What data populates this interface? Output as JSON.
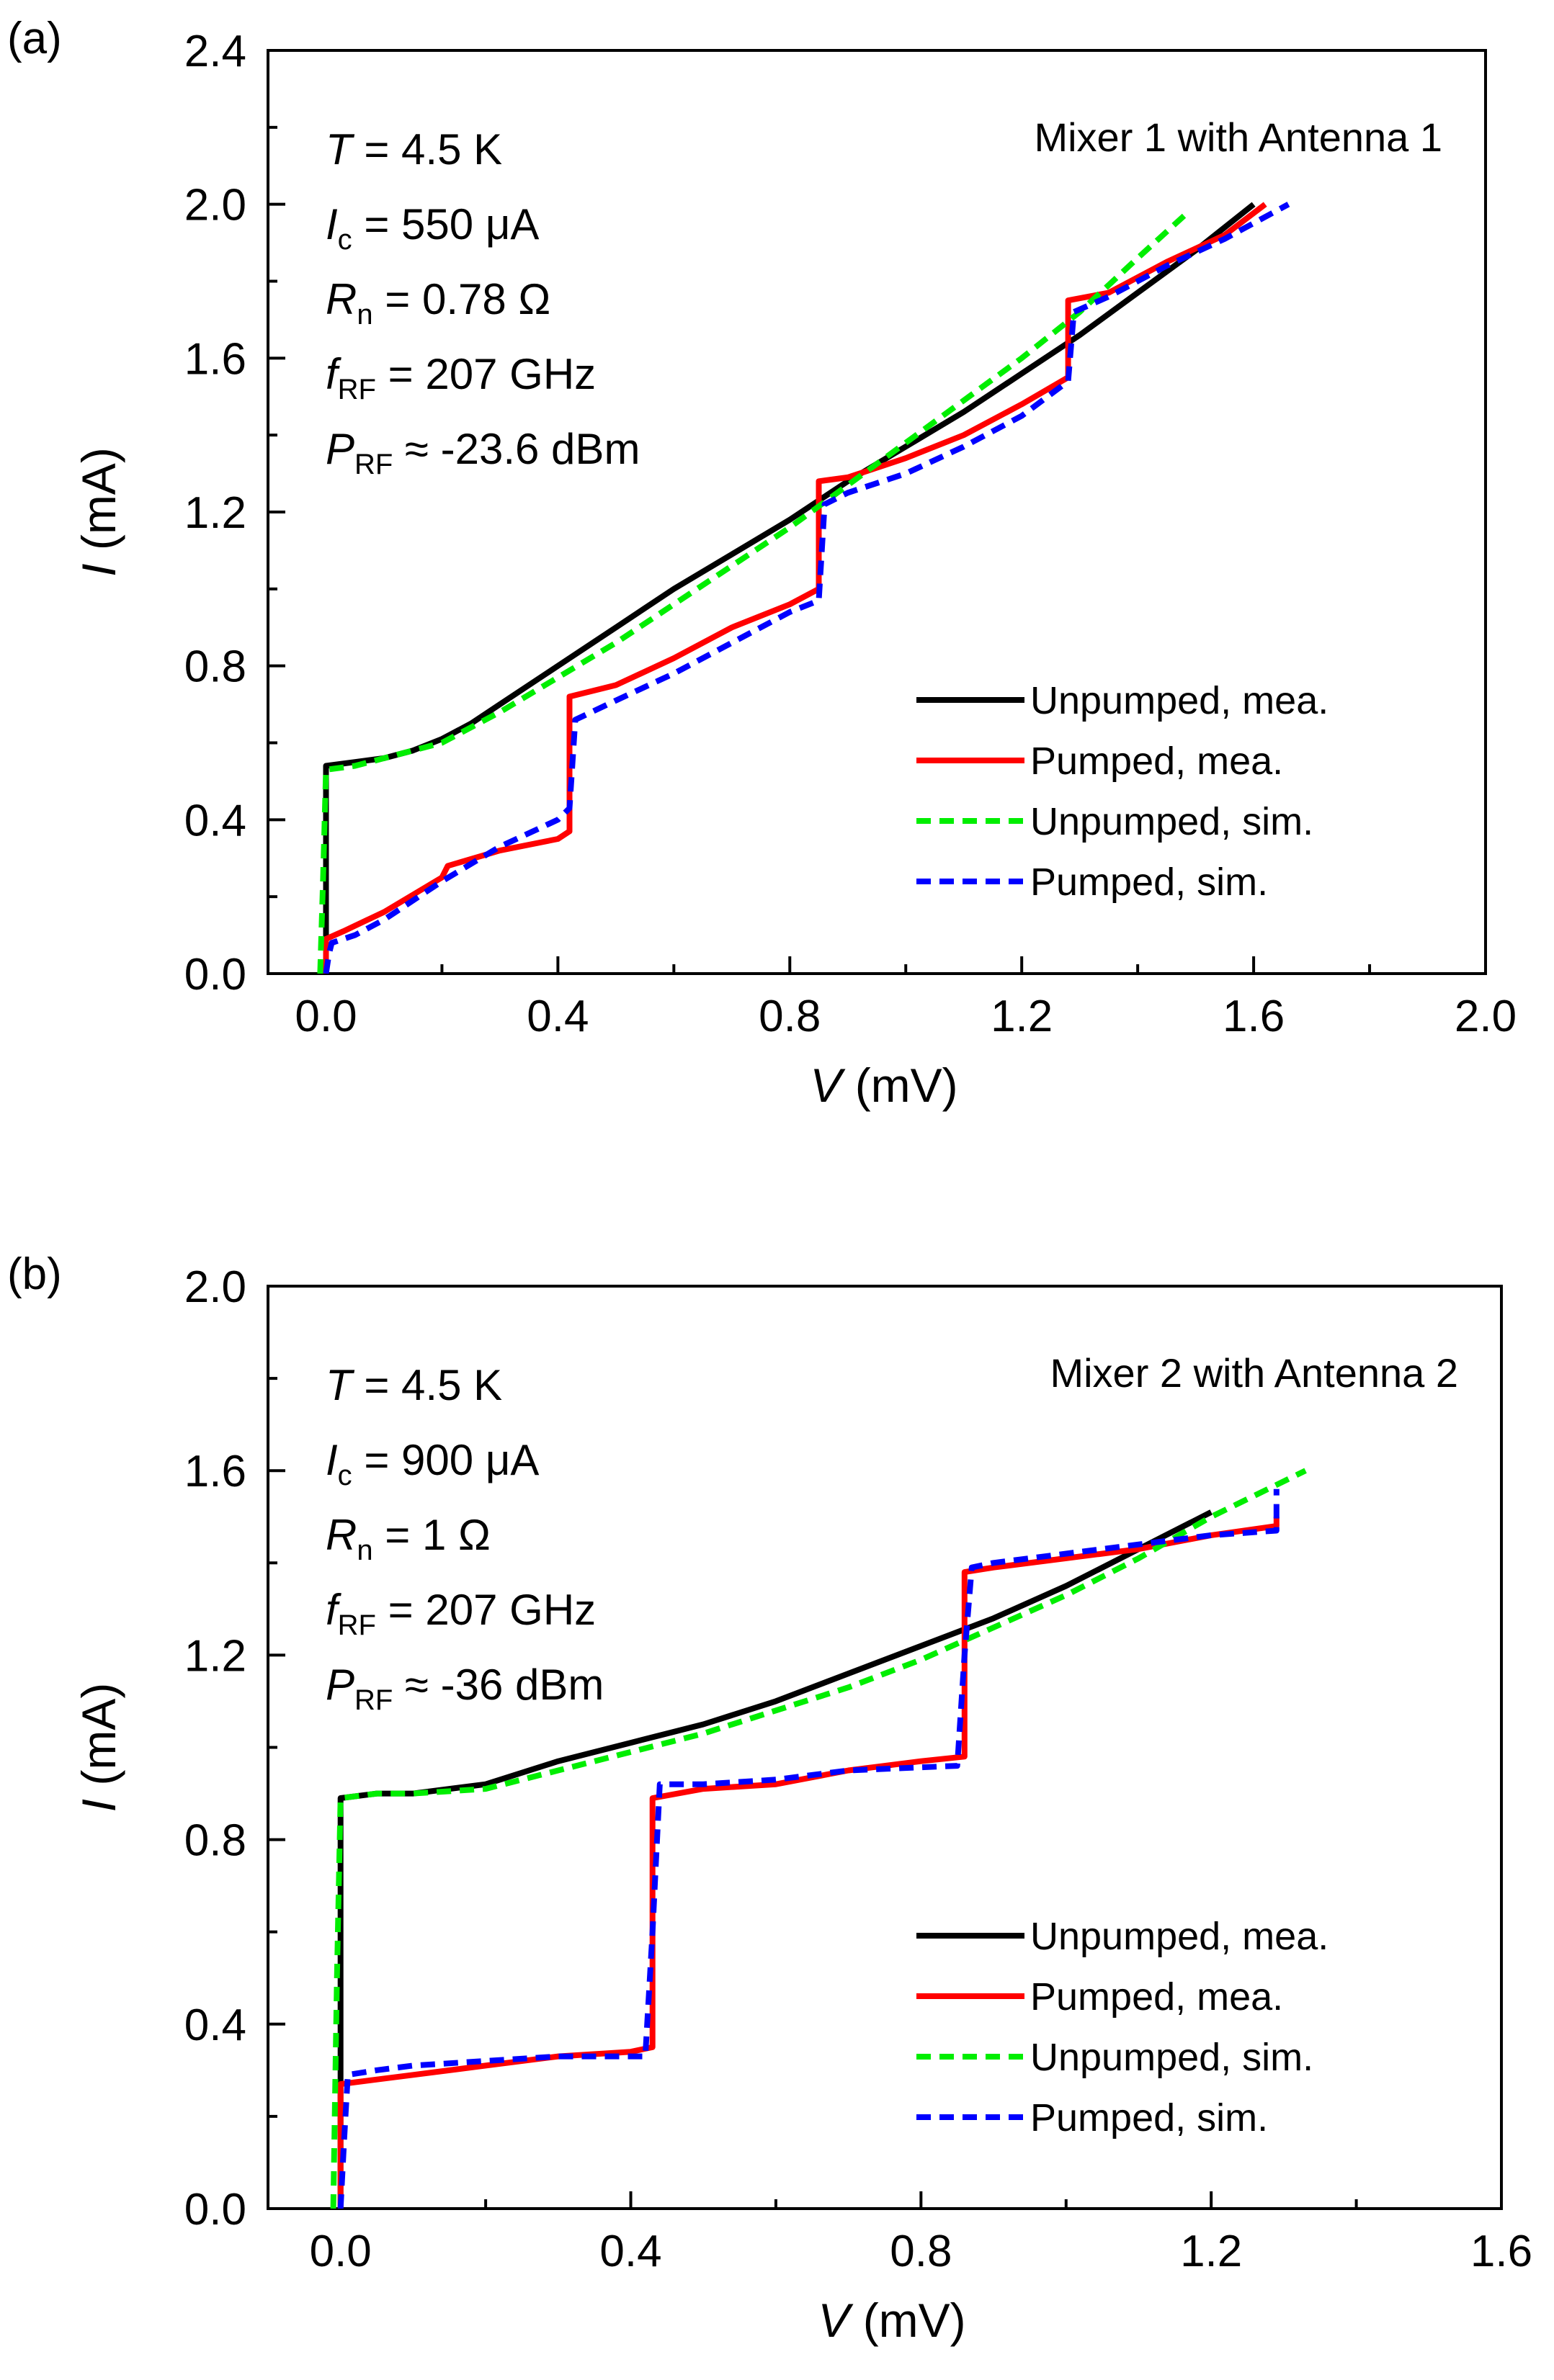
{
  "chart_data": [
    {
      "type": "line",
      "panel_label": "(a)",
      "title": "Mixer 1 with Antenna 1",
      "xlabel": {
        "symbol": "V",
        "unit": "(mV)"
      },
      "ylabel": {
        "symbol": "I",
        "unit": "(mA)"
      },
      "xlim": [
        -0.1,
        2.0
      ],
      "ylim": [
        0.0,
        2.4
      ],
      "xticks": [
        0.0,
        0.4,
        0.8,
        1.2,
        1.6,
        2.0
      ],
      "yticks": [
        0.0,
        0.4,
        0.8,
        1.2,
        1.6,
        2.0,
        2.4
      ],
      "xtick_labels": [
        "0.0",
        "0.4",
        "0.8",
        "1.2",
        "1.6",
        "2.0"
      ],
      "ytick_labels": [
        "0.0",
        "0.4",
        "0.8",
        "1.2",
        "1.6",
        "2.0",
        "2.4"
      ],
      "legend_position": "bottom-right",
      "parameters": [
        {
          "symbol": "T",
          "subscript": "",
          "text": " = 4.5 K"
        },
        {
          "symbol": "I",
          "subscript": "c",
          "text": " = 550 μA"
        },
        {
          "symbol": "R",
          "subscript": "n",
          "text": " = 0.78 Ω"
        },
        {
          "symbol": "f",
          "subscript": "RF",
          "text": " = 207 GHz"
        },
        {
          "symbol": "P",
          "subscript": "RF",
          "text": " ≈ -23.6 dBm"
        }
      ],
      "series": [
        {
          "name": "Unpumped, mea.",
          "color": "#000000",
          "style": "solid",
          "x": [
            0.0,
            0.0,
            0.0,
            0.05,
            0.1,
            0.15,
            0.2,
            0.25,
            0.3,
            0.4,
            0.5,
            0.6,
            0.7,
            0.8,
            0.9,
            1.0,
            1.1,
            1.2,
            1.3,
            1.4,
            1.5,
            1.6
          ],
          "y": [
            0.0,
            0.3,
            0.54,
            0.55,
            0.56,
            0.58,
            0.61,
            0.65,
            0.7,
            0.8,
            0.9,
            1.0,
            1.09,
            1.18,
            1.28,
            1.37,
            1.46,
            1.56,
            1.66,
            1.77,
            1.88,
            2.0
          ]
        },
        {
          "name": "Pumped, mea.",
          "color": "#ff0000",
          "style": "solid",
          "x": [
            0.0,
            0.0,
            0.0,
            0.03,
            0.1,
            0.2,
            0.21,
            0.3,
            0.4,
            0.42,
            0.42,
            0.5,
            0.6,
            0.7,
            0.8,
            0.85,
            0.85,
            0.9,
            1.0,
            1.1,
            1.2,
            1.28,
            1.28,
            1.35,
            1.45,
            1.55,
            1.62
          ],
          "y": [
            0.0,
            0.05,
            0.09,
            0.11,
            0.16,
            0.25,
            0.28,
            0.32,
            0.35,
            0.37,
            0.72,
            0.75,
            0.82,
            0.9,
            0.96,
            1.0,
            1.28,
            1.29,
            1.34,
            1.4,
            1.48,
            1.55,
            1.75,
            1.77,
            1.85,
            1.92,
            2.0
          ]
        },
        {
          "name": "Unpumped, sim.",
          "color": "#00ee00",
          "style": "dashed",
          "x": [
            -0.01,
            -0.005,
            0.0,
            0.05,
            0.1,
            0.15,
            0.2,
            0.3,
            0.4,
            0.5,
            0.6,
            0.7,
            0.8,
            0.9,
            1.0,
            1.1,
            1.2,
            1.3,
            1.4,
            1.48
          ],
          "y": [
            0.0,
            0.25,
            0.53,
            0.54,
            0.56,
            0.58,
            0.6,
            0.68,
            0.77,
            0.86,
            0.96,
            1.06,
            1.16,
            1.27,
            1.38,
            1.49,
            1.6,
            1.72,
            1.86,
            1.97
          ]
        },
        {
          "name": "Pumped, sim.",
          "color": "#0000ff",
          "style": "dashed",
          "x": [
            0.0,
            0.005,
            0.01,
            0.05,
            0.1,
            0.2,
            0.3,
            0.4,
            0.42,
            0.43,
            0.5,
            0.6,
            0.7,
            0.8,
            0.85,
            0.86,
            0.9,
            1.0,
            1.1,
            1.2,
            1.28,
            1.29,
            1.35,
            1.45,
            1.55,
            1.66
          ],
          "y": [
            0.0,
            0.05,
            0.08,
            0.1,
            0.14,
            0.24,
            0.33,
            0.4,
            0.43,
            0.66,
            0.71,
            0.78,
            0.86,
            0.94,
            0.97,
            1.22,
            1.25,
            1.3,
            1.37,
            1.45,
            1.54,
            1.72,
            1.76,
            1.84,
            1.91,
            2.0
          ]
        }
      ]
    },
    {
      "type": "line",
      "panel_label": "(b)",
      "title": "Mixer 2 with Antenna 2",
      "xlabel": {
        "symbol": "V",
        "unit": "(mV)"
      },
      "ylabel": {
        "symbol": "I",
        "unit": "(mA)"
      },
      "xlim": [
        -0.1,
        1.6
      ],
      "ylim": [
        0.0,
        2.0
      ],
      "xticks": [
        0.0,
        0.4,
        0.8,
        1.2,
        1.6
      ],
      "yticks": [
        0.0,
        0.4,
        0.8,
        1.2,
        1.6,
        2.0
      ],
      "xtick_labels": [
        "0.0",
        "0.4",
        "0.8",
        "1.2",
        "1.6"
      ],
      "ytick_labels": [
        "0.0",
        "0.4",
        "0.8",
        "1.2",
        "1.6",
        "2.0"
      ],
      "legend_position": "bottom-right",
      "parameters": [
        {
          "symbol": "T",
          "subscript": "",
          "text": " = 4.5 K"
        },
        {
          "symbol": "I",
          "subscript": "c",
          "text": " = 900 μA"
        },
        {
          "symbol": "R",
          "subscript": "n",
          "text": " = 1 Ω"
        },
        {
          "symbol": "f",
          "subscript": "RF",
          "text": " = 207 GHz"
        },
        {
          "symbol": "P",
          "subscript": "RF",
          "text": " ≈ -36 dBm"
        }
      ],
      "series": [
        {
          "name": "Unpumped, mea.",
          "color": "#000000",
          "style": "solid",
          "x": [
            0.0,
            0.0,
            0.0,
            0.05,
            0.1,
            0.2,
            0.3,
            0.4,
            0.5,
            0.6,
            0.7,
            0.8,
            0.9,
            1.0,
            1.1,
            1.2
          ],
          "y": [
            0.0,
            0.5,
            0.89,
            0.9,
            0.9,
            0.92,
            0.97,
            1.01,
            1.05,
            1.1,
            1.16,
            1.22,
            1.28,
            1.35,
            1.43,
            1.51
          ]
        },
        {
          "name": "Pumped, mea.",
          "color": "#ff0000",
          "style": "solid",
          "x": [
            0.0,
            0.0,
            0.0,
            0.05,
            0.1,
            0.2,
            0.3,
            0.4,
            0.43,
            0.43,
            0.5,
            0.6,
            0.7,
            0.8,
            0.86,
            0.86,
            0.9,
            1.0,
            1.1,
            1.2,
            1.29,
            1.29
          ],
          "y": [
            0.0,
            0.15,
            0.27,
            0.28,
            0.29,
            0.31,
            0.33,
            0.34,
            0.35,
            0.89,
            0.91,
            0.92,
            0.95,
            0.97,
            0.98,
            1.38,
            1.39,
            1.41,
            1.43,
            1.46,
            1.48,
            1.5
          ]
        },
        {
          "name": "Unpumped, sim.",
          "color": "#00ee00",
          "style": "dashed",
          "x": [
            -0.01,
            -0.005,
            0.0,
            0.05,
            0.1,
            0.2,
            0.3,
            0.4,
            0.5,
            0.6,
            0.7,
            0.8,
            0.9,
            1.0,
            1.1,
            1.2,
            1.33
          ],
          "y": [
            0.0,
            0.5,
            0.89,
            0.9,
            0.9,
            0.91,
            0.95,
            0.99,
            1.03,
            1.08,
            1.13,
            1.19,
            1.26,
            1.33,
            1.41,
            1.5,
            1.6
          ]
        },
        {
          "name": "Pumped, sim.",
          "color": "#0000ff",
          "style": "dashed",
          "x": [
            0.0,
            0.005,
            0.01,
            0.05,
            0.1,
            0.2,
            0.3,
            0.42,
            0.43,
            0.44,
            0.5,
            0.6,
            0.7,
            0.85,
            0.86,
            0.87,
            0.9,
            1.0,
            1.1,
            1.2,
            1.29,
            1.29
          ],
          "y": [
            0.0,
            0.15,
            0.29,
            0.3,
            0.31,
            0.32,
            0.33,
            0.33,
            0.6,
            0.92,
            0.92,
            0.93,
            0.95,
            0.96,
            1.2,
            1.39,
            1.4,
            1.42,
            1.44,
            1.46,
            1.47,
            1.56
          ]
        }
      ]
    }
  ]
}
